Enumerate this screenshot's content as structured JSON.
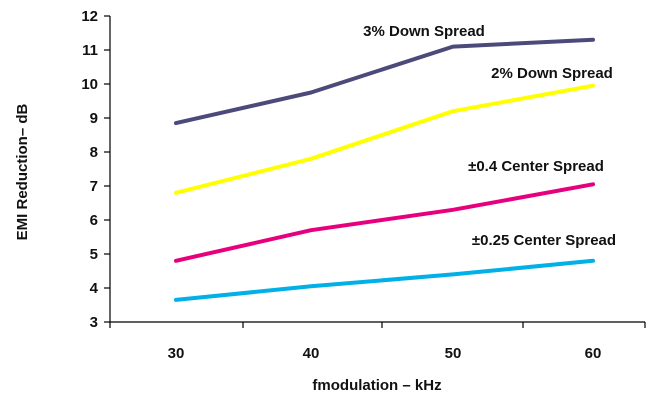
{
  "chart_data": {
    "type": "line",
    "xlabel": "fmodulation – kHz",
    "ylabel": "EMI Reduction– dB",
    "x": [
      30,
      40,
      50,
      60
    ],
    "x_tick_labels": [
      "30",
      "40",
      "50",
      "60"
    ],
    "ylim": [
      3,
      12
    ],
    "y_ticks": [
      3,
      4,
      5,
      6,
      7,
      8,
      9,
      10,
      11,
      12
    ],
    "y_tick_labels": [
      "3",
      "4",
      "5",
      "6",
      "7",
      "8",
      "9",
      "10",
      "11",
      "12"
    ],
    "grid": false,
    "legend": "inline labels next to lines",
    "series": [
      {
        "name": "3% Down Spread",
        "color": "#4b4a7a",
        "values": [
          8.85,
          9.75,
          11.1,
          11.3
        ]
      },
      {
        "name": "2% Down Spread",
        "color": "#ffff00",
        "values": [
          6.8,
          7.8,
          9.2,
          9.95
        ]
      },
      {
        "name": "±0.4 Center Spread",
        "color": "#e6007e",
        "values": [
          4.8,
          5.7,
          6.3,
          7.05
        ]
      },
      {
        "name": "±0.25 Center Spread",
        "color": "#00b0e6",
        "values": [
          3.65,
          4.05,
          4.4,
          4.8
        ]
      }
    ]
  }
}
